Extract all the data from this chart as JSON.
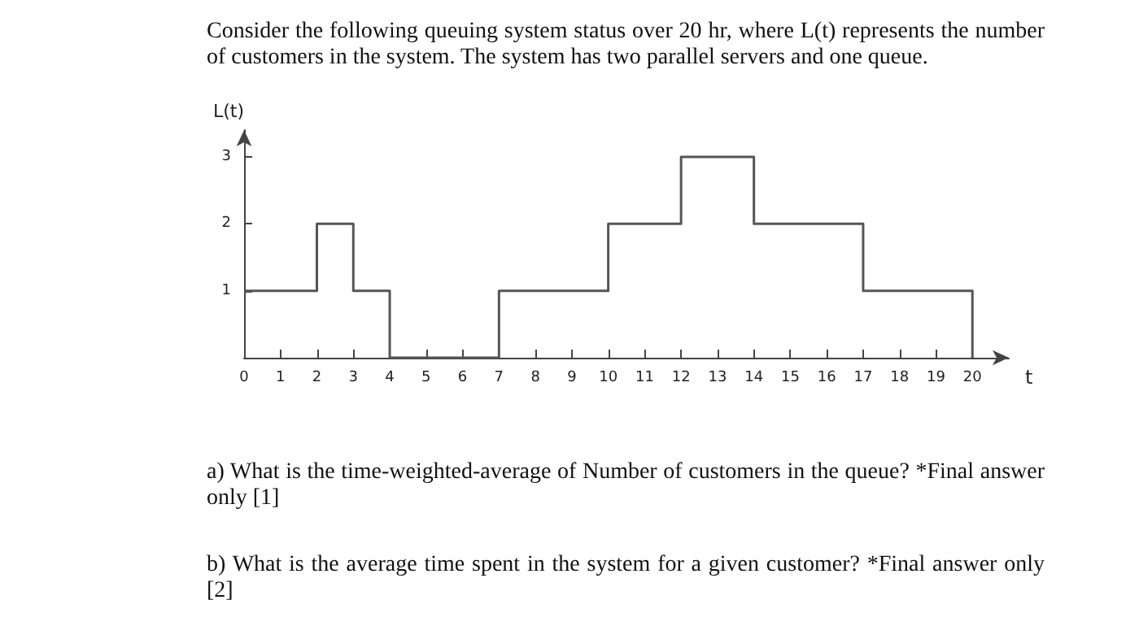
{
  "chart_data": {
    "type": "step",
    "title": "Consider the following queuing system status over 20 hr, where L(t) represents the number of customers in the system. The system has two parallel servers and one queue.",
    "xlabel": "t",
    "ylabel": "L(t)",
    "x": [
      0,
      2,
      3,
      4,
      7,
      10,
      12,
      14,
      17,
      20
    ],
    "values": [
      1,
      2,
      1,
      0,
      1,
      2,
      3,
      2,
      1,
      0
    ],
    "color": "#555555",
    "xlim": [
      0,
      21
    ],
    "xticks": [
      0,
      1,
      2,
      3,
      4,
      5,
      6,
      7,
      8,
      9,
      10,
      11,
      12,
      13,
      14,
      15,
      16,
      17,
      18,
      19,
      20
    ],
    "ylim": [
      0,
      3.4
    ],
    "yticks": [
      1,
      2,
      3
    ],
    "marker": "none",
    "line_style": "solid",
    "annotations": [
      "a) What is the time-weighted-average of Number of customers in the queue? *Final answer only  [1]",
      "b) What is the average time spent in the system for a given customer? *Final answer only [2]"
    ]
  }
}
